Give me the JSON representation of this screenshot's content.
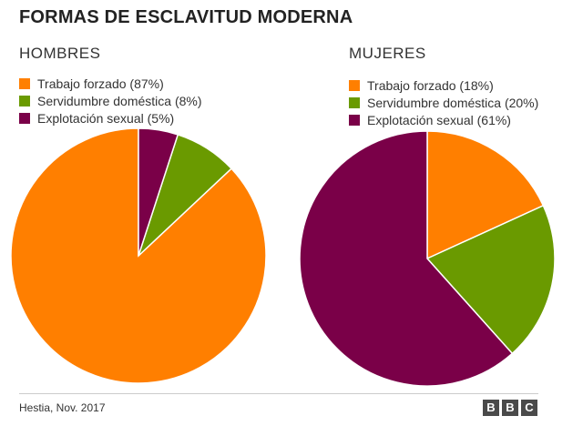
{
  "title": "FORMAS DE ESCLAVITUD MODERNA",
  "source": "Hestia, Nov. 2017",
  "logo": [
    "B",
    "B",
    "C"
  ],
  "colors": {
    "forced_labor": "#ff7f00",
    "domestic_servitude": "#6a9a00",
    "sexual_exploitation": "#7a0048"
  },
  "chart_data": [
    {
      "type": "pie",
      "title": "HOMBRES",
      "slices": [
        {
          "label": "Trabajo forzado (87%)",
          "value": 87,
          "color": "#ff7f00"
        },
        {
          "label": "Servidumbre doméstica  (8%)",
          "value": 8,
          "color": "#6a9a00"
        },
        {
          "label": "Explotación sexual (5%)",
          "value": 5,
          "color": "#7a0048"
        }
      ],
      "legend_position": "top-left",
      "start_angle_deg": 0,
      "direction": "counterclockwise"
    },
    {
      "type": "pie",
      "title": "MUJERES",
      "slices": [
        {
          "label": "Trabajo forzado (18%)",
          "value": 18,
          "color": "#ff7f00"
        },
        {
          "label": "Servidumbre doméstica (20%)",
          "value": 20,
          "color": "#6a9a00"
        },
        {
          "label": "Explotación sexual (61%)",
          "value": 61,
          "color": "#7a0048"
        }
      ],
      "legend_position": "top-left",
      "start_angle_deg": 0,
      "direction": "clockwise"
    }
  ]
}
